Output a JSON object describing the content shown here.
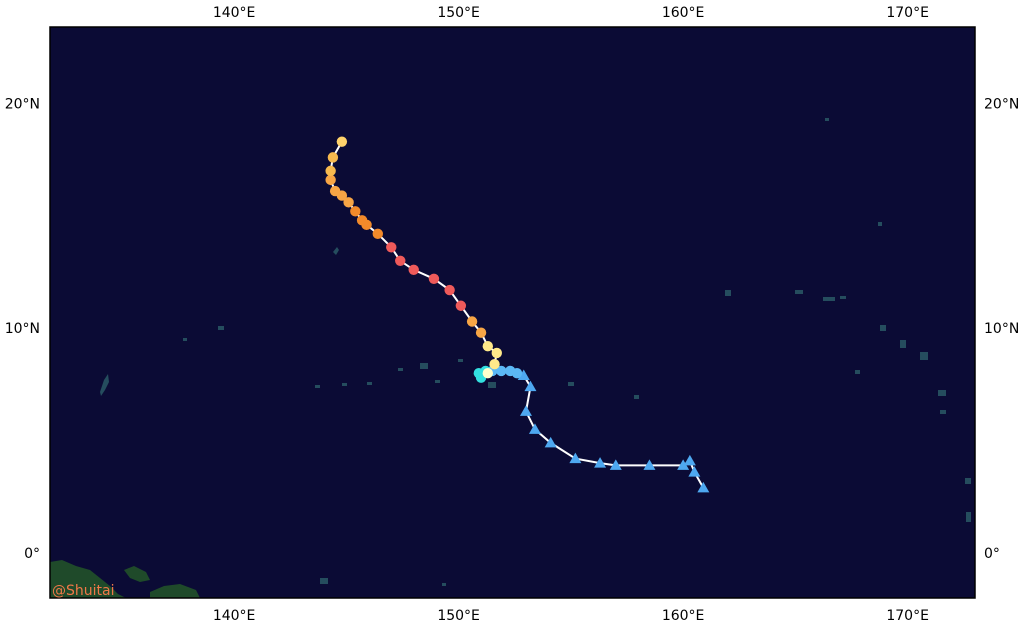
{
  "map": {
    "credit": "@Shuitai",
    "colors": {
      "ocean": "#0b0b35",
      "land": "#1f4a2a",
      "island": "#254d5e",
      "track": "#ffffff",
      "frame": "#000000"
    },
    "x_ticks_top": [
      {
        "lon": 140,
        "label": "140°E"
      },
      {
        "lon": 150,
        "label": "150°E"
      },
      {
        "lon": 160,
        "label": "160°E"
      },
      {
        "lon": 170,
        "label": "170°E"
      }
    ],
    "x_ticks_bottom": [
      {
        "lon": 140,
        "label": "140°E"
      },
      {
        "lon": 150,
        "label": "150°E"
      },
      {
        "lon": 160,
        "label": "160°E"
      },
      {
        "lon": 170,
        "label": "170°E"
      }
    ],
    "y_ticks_left": [
      {
        "lat": 20,
        "label": "20°N"
      },
      {
        "lat": 10,
        "label": "10°N"
      },
      {
        "lat": 0,
        "label": "0°"
      }
    ],
    "y_ticks_right": [
      {
        "lat": 20,
        "label": "20°N"
      },
      {
        "lat": 10,
        "label": "10°N"
      },
      {
        "lat": 0,
        "label": "0°"
      }
    ],
    "extent": {
      "lon": [
        131.8,
        173.0
      ],
      "lat": [
        -2.0,
        23.4
      ]
    },
    "track": [
      {
        "lon": 160.9,
        "lat": 2.9,
        "marker": "triangle",
        "color": "#4ea8f0"
      },
      {
        "lon": 160.5,
        "lat": 3.6,
        "marker": "triangle",
        "color": "#4ea8f0"
      },
      {
        "lon": 160.3,
        "lat": 4.1,
        "marker": "triangle",
        "color": "#4ea8f0"
      },
      {
        "lon": 160.0,
        "lat": 3.9,
        "marker": "triangle",
        "color": "#4ea8f0"
      },
      {
        "lon": 158.5,
        "lat": 3.9,
        "marker": "triangle",
        "color": "#4ea8f0"
      },
      {
        "lon": 157.0,
        "lat": 3.9,
        "marker": "triangle",
        "color": "#4ea8f0"
      },
      {
        "lon": 156.3,
        "lat": 4.0,
        "marker": "triangle",
        "color": "#4ea8f0"
      },
      {
        "lon": 155.2,
        "lat": 4.2,
        "marker": "triangle",
        "color": "#4ea8f0"
      },
      {
        "lon": 154.1,
        "lat": 4.9,
        "marker": "triangle",
        "color": "#4ea8f0"
      },
      {
        "lon": 153.4,
        "lat": 5.5,
        "marker": "triangle",
        "color": "#4ea8f0"
      },
      {
        "lon": 153.0,
        "lat": 6.3,
        "marker": "triangle",
        "color": "#4ea8f0"
      },
      {
        "lon": 153.2,
        "lat": 7.4,
        "marker": "triangle",
        "color": "#4ea8f0"
      },
      {
        "lon": 152.9,
        "lat": 7.9,
        "marker": "triangle",
        "color": "#4ea8f0"
      },
      {
        "lon": 152.6,
        "lat": 8.0,
        "marker": "circle",
        "color": "#5bb8f5"
      },
      {
        "lon": 152.3,
        "lat": 8.1,
        "marker": "circle",
        "color": "#5bb8f5"
      },
      {
        "lon": 151.9,
        "lat": 8.1,
        "marker": "circle",
        "color": "#5bb8f5"
      },
      {
        "lon": 151.5,
        "lat": 8.1,
        "marker": "circle",
        "color": "#5bb8f5"
      },
      {
        "lon": 151.2,
        "lat": 8.1,
        "marker": "circle",
        "color": "#33e0e0"
      },
      {
        "lon": 150.9,
        "lat": 8.0,
        "marker": "circle",
        "color": "#33e0e0"
      },
      {
        "lon": 151.0,
        "lat": 7.8,
        "marker": "circle",
        "color": "#33e0e0"
      },
      {
        "lon": 151.3,
        "lat": 8.0,
        "marker": "circle",
        "color": "#ffffcc"
      },
      {
        "lon": 151.6,
        "lat": 8.4,
        "marker": "circle",
        "color": "#ffe98a"
      },
      {
        "lon": 151.7,
        "lat": 8.9,
        "marker": "circle",
        "color": "#ffe98a"
      },
      {
        "lon": 151.3,
        "lat": 9.2,
        "marker": "circle",
        "color": "#ffe98a"
      },
      {
        "lon": 151.0,
        "lat": 9.8,
        "marker": "circle",
        "color": "#f7a545"
      },
      {
        "lon": 150.6,
        "lat": 10.3,
        "marker": "circle",
        "color": "#f7a545"
      },
      {
        "lon": 150.1,
        "lat": 11.0,
        "marker": "circle",
        "color": "#ef5a5a"
      },
      {
        "lon": 149.6,
        "lat": 11.7,
        "marker": "circle",
        "color": "#ef5a5a"
      },
      {
        "lon": 148.9,
        "lat": 12.2,
        "marker": "circle",
        "color": "#ef5a5a"
      },
      {
        "lon": 148.0,
        "lat": 12.6,
        "marker": "circle",
        "color": "#ef5a5a"
      },
      {
        "lon": 147.4,
        "lat": 13.0,
        "marker": "circle",
        "color": "#ef5a5a"
      },
      {
        "lon": 147.0,
        "lat": 13.6,
        "marker": "circle",
        "color": "#ef5a5a"
      },
      {
        "lon": 146.4,
        "lat": 14.2,
        "marker": "circle",
        "color": "#f28a2a"
      },
      {
        "lon": 145.9,
        "lat": 14.6,
        "marker": "circle",
        "color": "#f28a2a"
      },
      {
        "lon": 145.7,
        "lat": 14.8,
        "marker": "circle",
        "color": "#f28a2a"
      },
      {
        "lon": 145.4,
        "lat": 15.2,
        "marker": "circle",
        "color": "#f28a2a"
      },
      {
        "lon": 145.1,
        "lat": 15.6,
        "marker": "circle",
        "color": "#f7a545"
      },
      {
        "lon": 144.8,
        "lat": 15.9,
        "marker": "circle",
        "color": "#f7a545"
      },
      {
        "lon": 144.5,
        "lat": 16.1,
        "marker": "circle",
        "color": "#f7a545"
      },
      {
        "lon": 144.3,
        "lat": 16.6,
        "marker": "circle",
        "color": "#f7a545"
      },
      {
        "lon": 144.3,
        "lat": 17.0,
        "marker": "circle",
        "color": "#f7b94e"
      },
      {
        "lon": 144.4,
        "lat": 17.6,
        "marker": "circle",
        "color": "#f7b94e"
      },
      {
        "lon": 144.8,
        "lat": 18.3,
        "marker": "circle",
        "color": "#ffd36b"
      }
    ]
  }
}
